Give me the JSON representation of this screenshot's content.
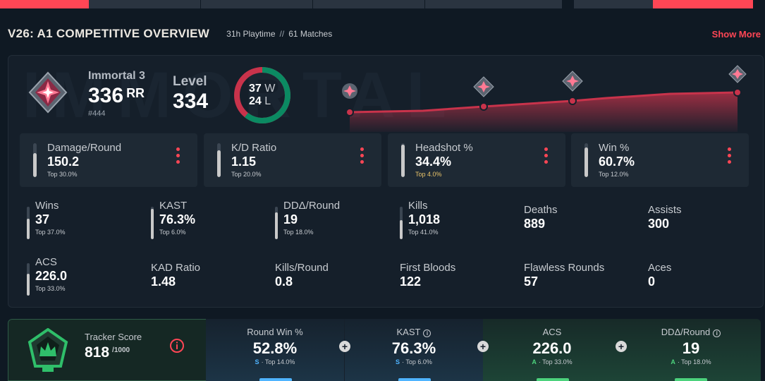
{
  "header": {
    "title": "V26: A1 COMPETITIVE OVERVIEW",
    "playtime": "31h Playtime",
    "separator": "//",
    "matches": "61 Matches",
    "show_more": "Show More"
  },
  "overview": {
    "watermark": "IMMORTAL",
    "rank": {
      "name": "Immortal 3",
      "rr": "336",
      "rr_unit": "RR",
      "position": "#444"
    },
    "level": {
      "label": "Level",
      "value": "334"
    },
    "record": {
      "wins": "37",
      "wins_unit": "W",
      "losses": "24",
      "losses_unit": "L",
      "win_fraction": 0.607
    },
    "rr_history_points": [
      0.12,
      0.38,
      0.52,
      1.0
    ],
    "primary_stats": [
      {
        "label": "Damage/Round",
        "value": "150.2",
        "rank": "Top 30.0%",
        "fill": 0.7
      },
      {
        "label": "K/D Ratio",
        "value": "1.15",
        "rank": "Top 20.0%",
        "fill": 0.8
      },
      {
        "label": "Headshot %",
        "value": "34.4%",
        "rank": "Top 4.0%",
        "fill": 0.96
      },
      {
        "label": "Win %",
        "value": "60.7%",
        "rank": "Top 12.0%",
        "fill": 0.88
      }
    ],
    "secondary_stats": [
      {
        "label": "Wins",
        "value": "37",
        "rank": "Top 37.0%",
        "fill": 0.63
      },
      {
        "label": "KAST",
        "value": "76.3%",
        "rank": "Top 6.0%",
        "fill": 0.94
      },
      {
        "label": "DDΔ/Round",
        "value": "19",
        "rank": "Top 18.0%",
        "fill": 0.82
      },
      {
        "label": "Kills",
        "value": "1,018",
        "rank": "Top 41.0%",
        "fill": 0.59
      },
      {
        "label": "Deaths",
        "value": "889"
      },
      {
        "label": "Assists",
        "value": "300"
      },
      {
        "label": "ACS",
        "value": "226.0",
        "rank": "Top 33.0%",
        "fill": 0.67
      },
      {
        "label": "KAD Ratio",
        "value": "1.48"
      },
      {
        "label": "Kills/Round",
        "value": "0.8"
      },
      {
        "label": "First Bloods",
        "value": "122"
      },
      {
        "label": "Flawless Rounds",
        "value": "57"
      },
      {
        "label": "Aces",
        "value": "0"
      }
    ]
  },
  "tracker": {
    "label": "Tracker Score",
    "value": "818",
    "max": "/1000",
    "cards": [
      {
        "label": "Round Win %",
        "value": "52.8%",
        "grade": "S",
        "rank": "· Top 14.0%",
        "info": false,
        "tone": "blue"
      },
      {
        "label": "KAST",
        "value": "76.3%",
        "grade": "S",
        "rank": "· Top 6.0%",
        "info": true,
        "tone": "blue"
      },
      {
        "label": "ACS",
        "value": "226.0",
        "grade": "A",
        "rank": "· Top 33.0%",
        "info": false,
        "tone": "green"
      },
      {
        "label": "DDΔ/Round",
        "value": "19",
        "grade": "A",
        "rank": "· Top 18.0%",
        "info": true,
        "tone": "green"
      }
    ]
  },
  "colors": {
    "accent": "#ff4655",
    "win": "#0b8a62",
    "blue_grade": "#4fb4ff",
    "green_grade": "#4cd27c"
  }
}
